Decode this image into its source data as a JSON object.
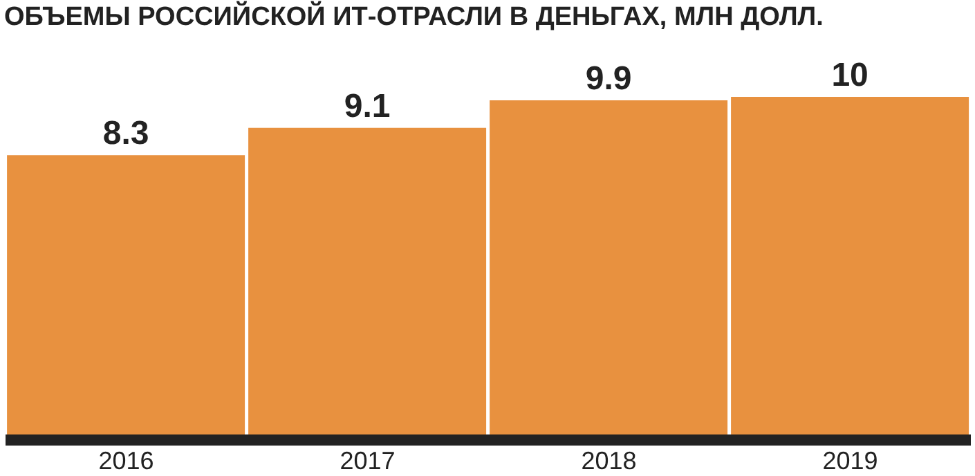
{
  "chart_data": {
    "type": "bar",
    "title": "ОБЪЕМЫ РОССИЙСКОЙ ИТ-ОТРАСЛИ В ДЕНЬГАХ, МЛН ДОЛЛ.",
    "categories": [
      "2016",
      "2017",
      "2018",
      "2019"
    ],
    "values": [
      8.3,
      9.1,
      9.9,
      10
    ],
    "color": "#e8913f",
    "tick_labels": "x",
    "data_labels": true,
    "grid": false,
    "legend": false
  }
}
